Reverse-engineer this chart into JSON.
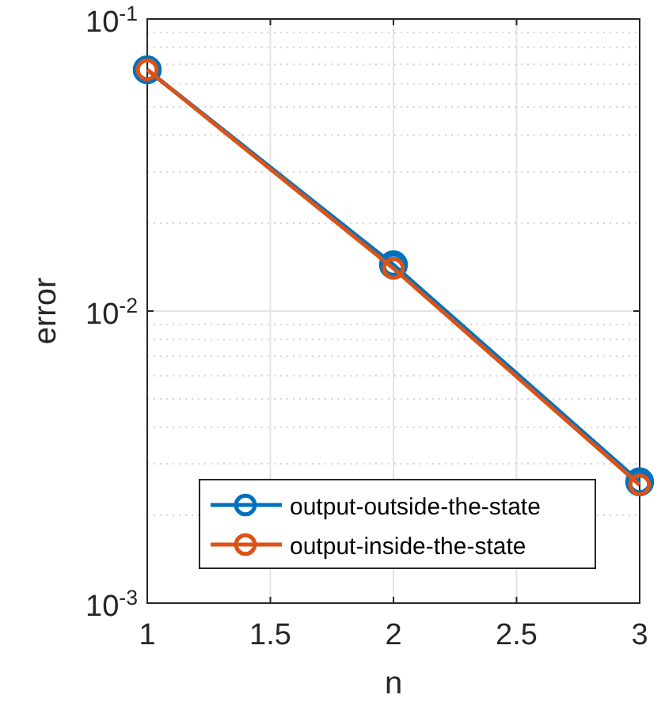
{
  "chart_data": {
    "type": "line",
    "xlabel": "n",
    "ylabel": "error",
    "x": [
      1,
      2,
      3
    ],
    "series": [
      {
        "name": "output-outside-the-state",
        "color": "#0072bd",
        "values": [
          0.067,
          0.0144,
          0.0026
        ]
      },
      {
        "name": "output-inside-the-state",
        "color": "#d95319",
        "values": [
          0.067,
          0.014,
          0.00254
        ]
      }
    ],
    "xlim": [
      1,
      3
    ],
    "xticks": [
      1,
      1.5,
      2,
      2.5,
      3
    ],
    "ylim": [
      0.001,
      0.1
    ],
    "yticks": [
      {
        "value": 0.001,
        "label": "10$^{-3}$"
      },
      {
        "value": 0.01,
        "label": "10$^{-2}$"
      },
      {
        "value": 0.1,
        "label": "10$^{-1}$"
      }
    ],
    "log": "y",
    "grid": true,
    "legend": "bottom right",
    "marker": "circle",
    "line_style": "solid"
  }
}
